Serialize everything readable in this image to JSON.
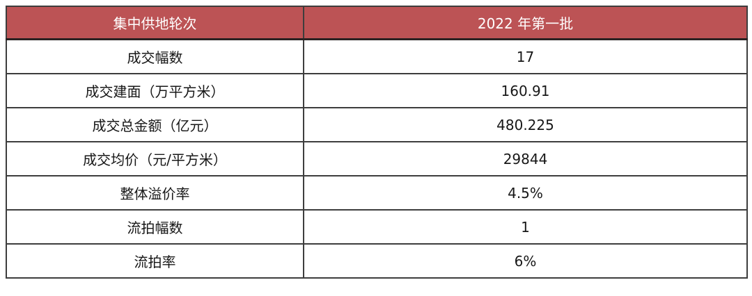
{
  "colors": {
    "header_bg": "#bc5355",
    "header_text": "#ffffff",
    "body_text": "#171717",
    "grid_line": "#3d3d3d",
    "page_bg": "#ffffff"
  },
  "table": {
    "header": {
      "col1": "集中供地轮次",
      "col2": "2022 年第一批"
    },
    "rows": [
      {
        "label": "成交幅数",
        "value": "17"
      },
      {
        "label": "成交建面（万平方米）",
        "value": "160.91"
      },
      {
        "label": "成交总金额（亿元）",
        "value": "480.225"
      },
      {
        "label": "成交均价（元/平方米）",
        "value": "29844"
      },
      {
        "label": "整体溢价率",
        "value": "4.5%"
      },
      {
        "label": "流拍幅数",
        "value": "1"
      },
      {
        "label": "流拍率",
        "value": "6%"
      }
    ]
  }
}
